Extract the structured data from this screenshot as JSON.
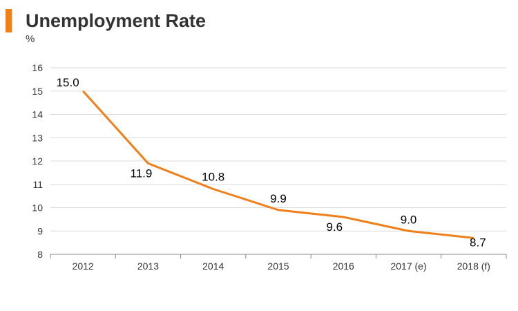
{
  "header": {
    "title": "Unemployment Rate",
    "unit": "%",
    "accent_color": "#F07F1A"
  },
  "chart_data": {
    "type": "line",
    "title": "Unemployment Rate",
    "ylabel": "%",
    "xlabel": "",
    "categories": [
      "2012",
      "2013",
      "2014",
      "2015",
      "2016",
      "2017 (e)",
      "2018 (f)"
    ],
    "series": [
      {
        "values": [
          15.0,
          11.9,
          10.8,
          9.9,
          9.6,
          9.0,
          8.7
        ],
        "color": "#F07F1A"
      }
    ],
    "data_labels": [
      "15.0",
      "11.9",
      "10.8",
      "9.9",
      "9.6",
      "9.0",
      "8.7"
    ],
    "ylim": [
      8,
      16
    ],
    "yticks": [
      8,
      9,
      10,
      11,
      12,
      13,
      14,
      15,
      16
    ],
    "grid": true,
    "gridline_color": "#D9D9D9",
    "legend": "none"
  }
}
